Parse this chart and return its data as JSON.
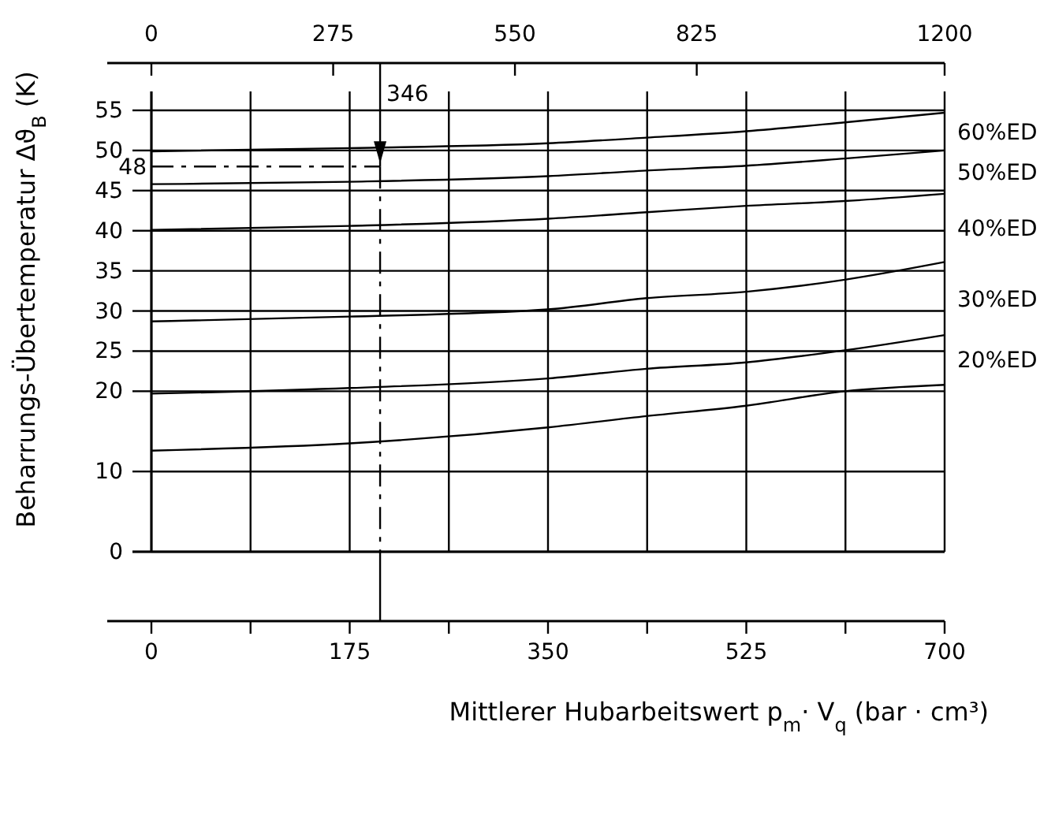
{
  "chart_data": {
    "type": "line",
    "xlabel": "Mittlerer Hubarbeitswert p$_{m}$· V$_{q}$ (bar · cm³)",
    "ylabel": "Beharrungs-Übertemperatur Δϑ$_{B}$ (K)",
    "xlim": [
      0,
      700
    ],
    "xticks": [
      0,
      {
        "value": 87.5,
        "label": null
      },
      175,
      {
        "value": 262.5,
        "label": null
      },
      350,
      {
        "value": 437.5,
        "label": null
      },
      525,
      {
        "value": 612.5,
        "label": null
      },
      700
    ],
    "x2lim": [
      0,
      1200
    ],
    "x2ticks": [
      0,
      275,
      550,
      825,
      1200
    ],
    "ylim": [
      0,
      55
    ],
    "yticks": [
      0,
      10,
      20,
      25,
      30,
      35,
      40,
      45,
      50,
      55
    ],
    "grid": true,
    "marker": "none",
    "line_style": "solid",
    "x": [
      0,
      175,
      350,
      437,
      525,
      612,
      700
    ],
    "series": [
      {
        "color": "#000000",
        "values": [
          12.6,
          13.5,
          15.5,
          16.9,
          18.2,
          20.0,
          20.8
        ]
      },
      {
        "color": "#000000",
        "values": [
          19.7,
          20.4,
          21.6,
          22.8,
          23.6,
          25.1,
          27.0
        ]
      },
      {
        "color": "#000000",
        "values": [
          28.7,
          29.3,
          30.2,
          31.6,
          32.4,
          33.9,
          36.1
        ]
      },
      {
        "color": "#000000",
        "values": [
          40.1,
          40.6,
          41.5,
          42.3,
          43.1,
          43.7,
          44.6
        ]
      },
      {
        "color": "#000000",
        "values": [
          45.8,
          46.1,
          46.8,
          47.5,
          48.1,
          49.0,
          50.0
        ]
      },
      {
        "color": "#000000",
        "values": [
          49.9,
          50.3,
          50.9,
          51.6,
          52.4,
          53.5,
          54.7
        ]
      }
    ],
    "ref_lines": [
      {
        "axis": "y",
        "value": 48,
        "label": "48",
        "line_style": "dashed"
      },
      {
        "axis": "x2",
        "value": 346,
        "label": "346",
        "line_style": "dashed"
      }
    ],
    "annotations": [
      "60%ED",
      "50%ED",
      "40%ED",
      "30%ED",
      "20%ED"
    ]
  }
}
